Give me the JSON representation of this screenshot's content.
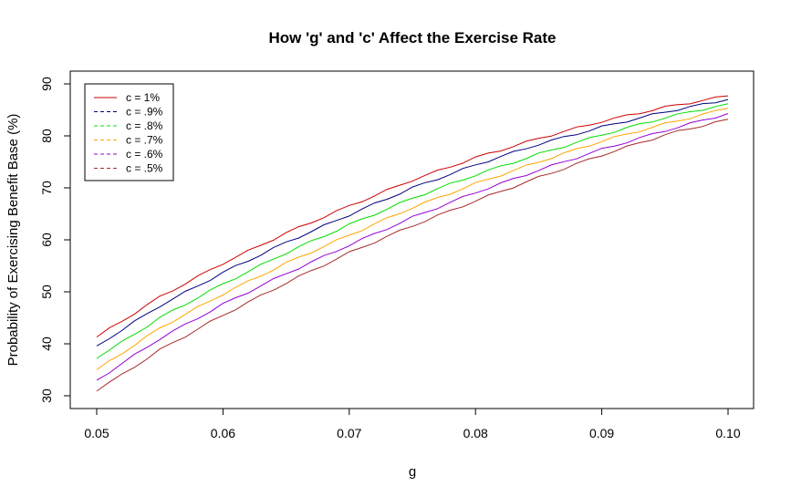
{
  "chart_data": {
    "type": "line",
    "title": "How 'g' and 'c' Affect the Exercise Rate",
    "xlabel": "g",
    "ylabel": "Probability of Exercising Benefit Base (%)",
    "xlim": [
      0.05,
      0.1
    ],
    "ylim": [
      30,
      90
    ],
    "xticks": [
      "0.05",
      "0.06",
      "0.07",
      "0.08",
      "0.09",
      "0.10"
    ],
    "yticks": [
      "30",
      "40",
      "50",
      "60",
      "70",
      "80",
      "90"
    ],
    "legend_position": "top-left",
    "x": [
      0.05,
      0.055,
      0.06,
      0.065,
      0.07,
      0.075,
      0.08,
      0.085,
      0.09,
      0.095,
      0.1
    ],
    "series": [
      {
        "name": "c = 1%",
        "color": "#cc0000",
        "dash": "solid",
        "values": [
          41.3,
          49.0,
          55.5,
          61.3,
          66.5,
          71.5,
          75.8,
          79.5,
          82.8,
          85.5,
          87.7
        ]
      },
      {
        "name": "c = .9%",
        "color": "#000080",
        "dash": "dashed",
        "values": [
          39.6,
          47.3,
          53.7,
          59.5,
          64.8,
          70.0,
          74.4,
          78.4,
          81.7,
          84.6,
          87.0
        ]
      },
      {
        "name": "c = .8%",
        "color": "#00dd00",
        "dash": "dashed",
        "values": [
          37.2,
          45.0,
          51.5,
          57.5,
          62.9,
          68.0,
          72.5,
          76.5,
          80.2,
          83.5,
          86.2
        ]
      },
      {
        "name": "c = .7%",
        "color": "#ffa500",
        "dash": "dashed",
        "values": [
          35.0,
          43.0,
          49.6,
          55.5,
          60.9,
          66.2,
          70.8,
          75.0,
          79.0,
          82.3,
          85.3
        ]
      },
      {
        "name": "c = .6%",
        "color": "#9400d3",
        "dash": "dashed",
        "values": [
          33.0,
          41.0,
          47.6,
          53.5,
          59.0,
          64.3,
          69.1,
          73.4,
          77.4,
          81.0,
          84.3
        ]
      },
      {
        "name": "c = .5%",
        "color": "#a52a2a",
        "dash": "dashed",
        "values": [
          30.9,
          38.8,
          45.5,
          51.7,
          57.5,
          62.7,
          67.5,
          72.0,
          76.3,
          80.2,
          83.2
        ]
      }
    ]
  }
}
